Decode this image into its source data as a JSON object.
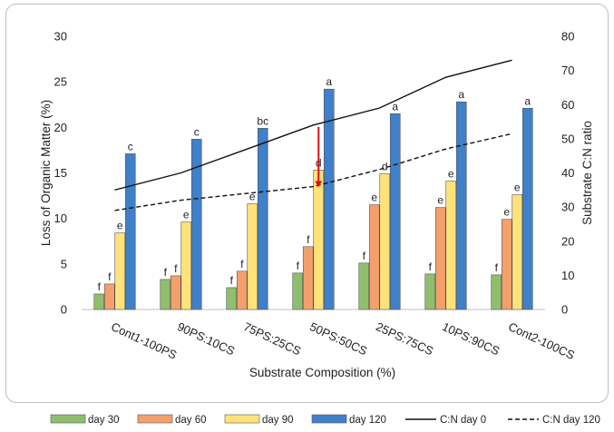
{
  "chart_data": {
    "type": "bar",
    "categories": [
      "Cont1-100PS",
      "90PS:10CS",
      "75PS:25CS",
      "50PS:50CS",
      "25PS:75CS",
      "10PS:90CS",
      "Cont2-100CS"
    ],
    "series": [
      {
        "name": "day 30",
        "values": [
          1.7,
          3.3,
          2.4,
          4.0,
          5.1,
          3.9,
          3.8
        ],
        "color": "#8fbf6c",
        "axis": "left"
      },
      {
        "name": "day 60",
        "values": [
          2.8,
          3.7,
          4.2,
          6.9,
          11.5,
          11.2,
          9.9
        ],
        "color": "#f4a06d",
        "axis": "left"
      },
      {
        "name": "day 90",
        "values": [
          8.4,
          9.6,
          11.6,
          15.3,
          14.9,
          14.1,
          12.6
        ],
        "color": "#ffe27a",
        "axis": "left"
      },
      {
        "name": "day 120",
        "values": [
          17.1,
          18.7,
          19.9,
          24.2,
          21.5,
          22.8,
          22.1
        ],
        "color": "#3f80c9",
        "axis": "left"
      }
    ],
    "lines": [
      {
        "name": "C:N  day 0",
        "style": "solid",
        "axis": "right",
        "values": [
          35,
          40,
          47,
          54,
          59,
          68,
          73
        ]
      },
      {
        "name": "C:N  day 120",
        "style": "dashed",
        "axis": "right",
        "values": [
          29,
          32,
          34,
          36,
          41,
          47,
          51.5
        ]
      }
    ],
    "letters": [
      [
        "f",
        "f",
        "e",
        "c"
      ],
      [
        "f",
        "f",
        "e",
        "c"
      ],
      [
        "f",
        "f",
        "e",
        "bc"
      ],
      [
        "f",
        "f",
        "d",
        "a"
      ],
      [
        "f",
        "e",
        "d",
        "a"
      ],
      [
        "f",
        "e",
        "e",
        "a"
      ],
      [
        "f",
        "e",
        "e",
        "a"
      ]
    ],
    "xlabel": "Substrate Composition (%)",
    "ylabel": "Loss of Organic Matter (%)",
    "y2label": "Substrate C:N ratio",
    "ylim": [
      0,
      30
    ],
    "y2lim": [
      0,
      80
    ],
    "yticks": [
      0,
      5,
      10,
      15,
      20,
      25,
      30
    ],
    "y2ticks": [
      0,
      10,
      20,
      30,
      40,
      50,
      60,
      70,
      80
    ],
    "legend_position": "bottom",
    "annotation": {
      "type": "arrow",
      "color": "#e01010",
      "category": "50PS:50CS"
    }
  }
}
